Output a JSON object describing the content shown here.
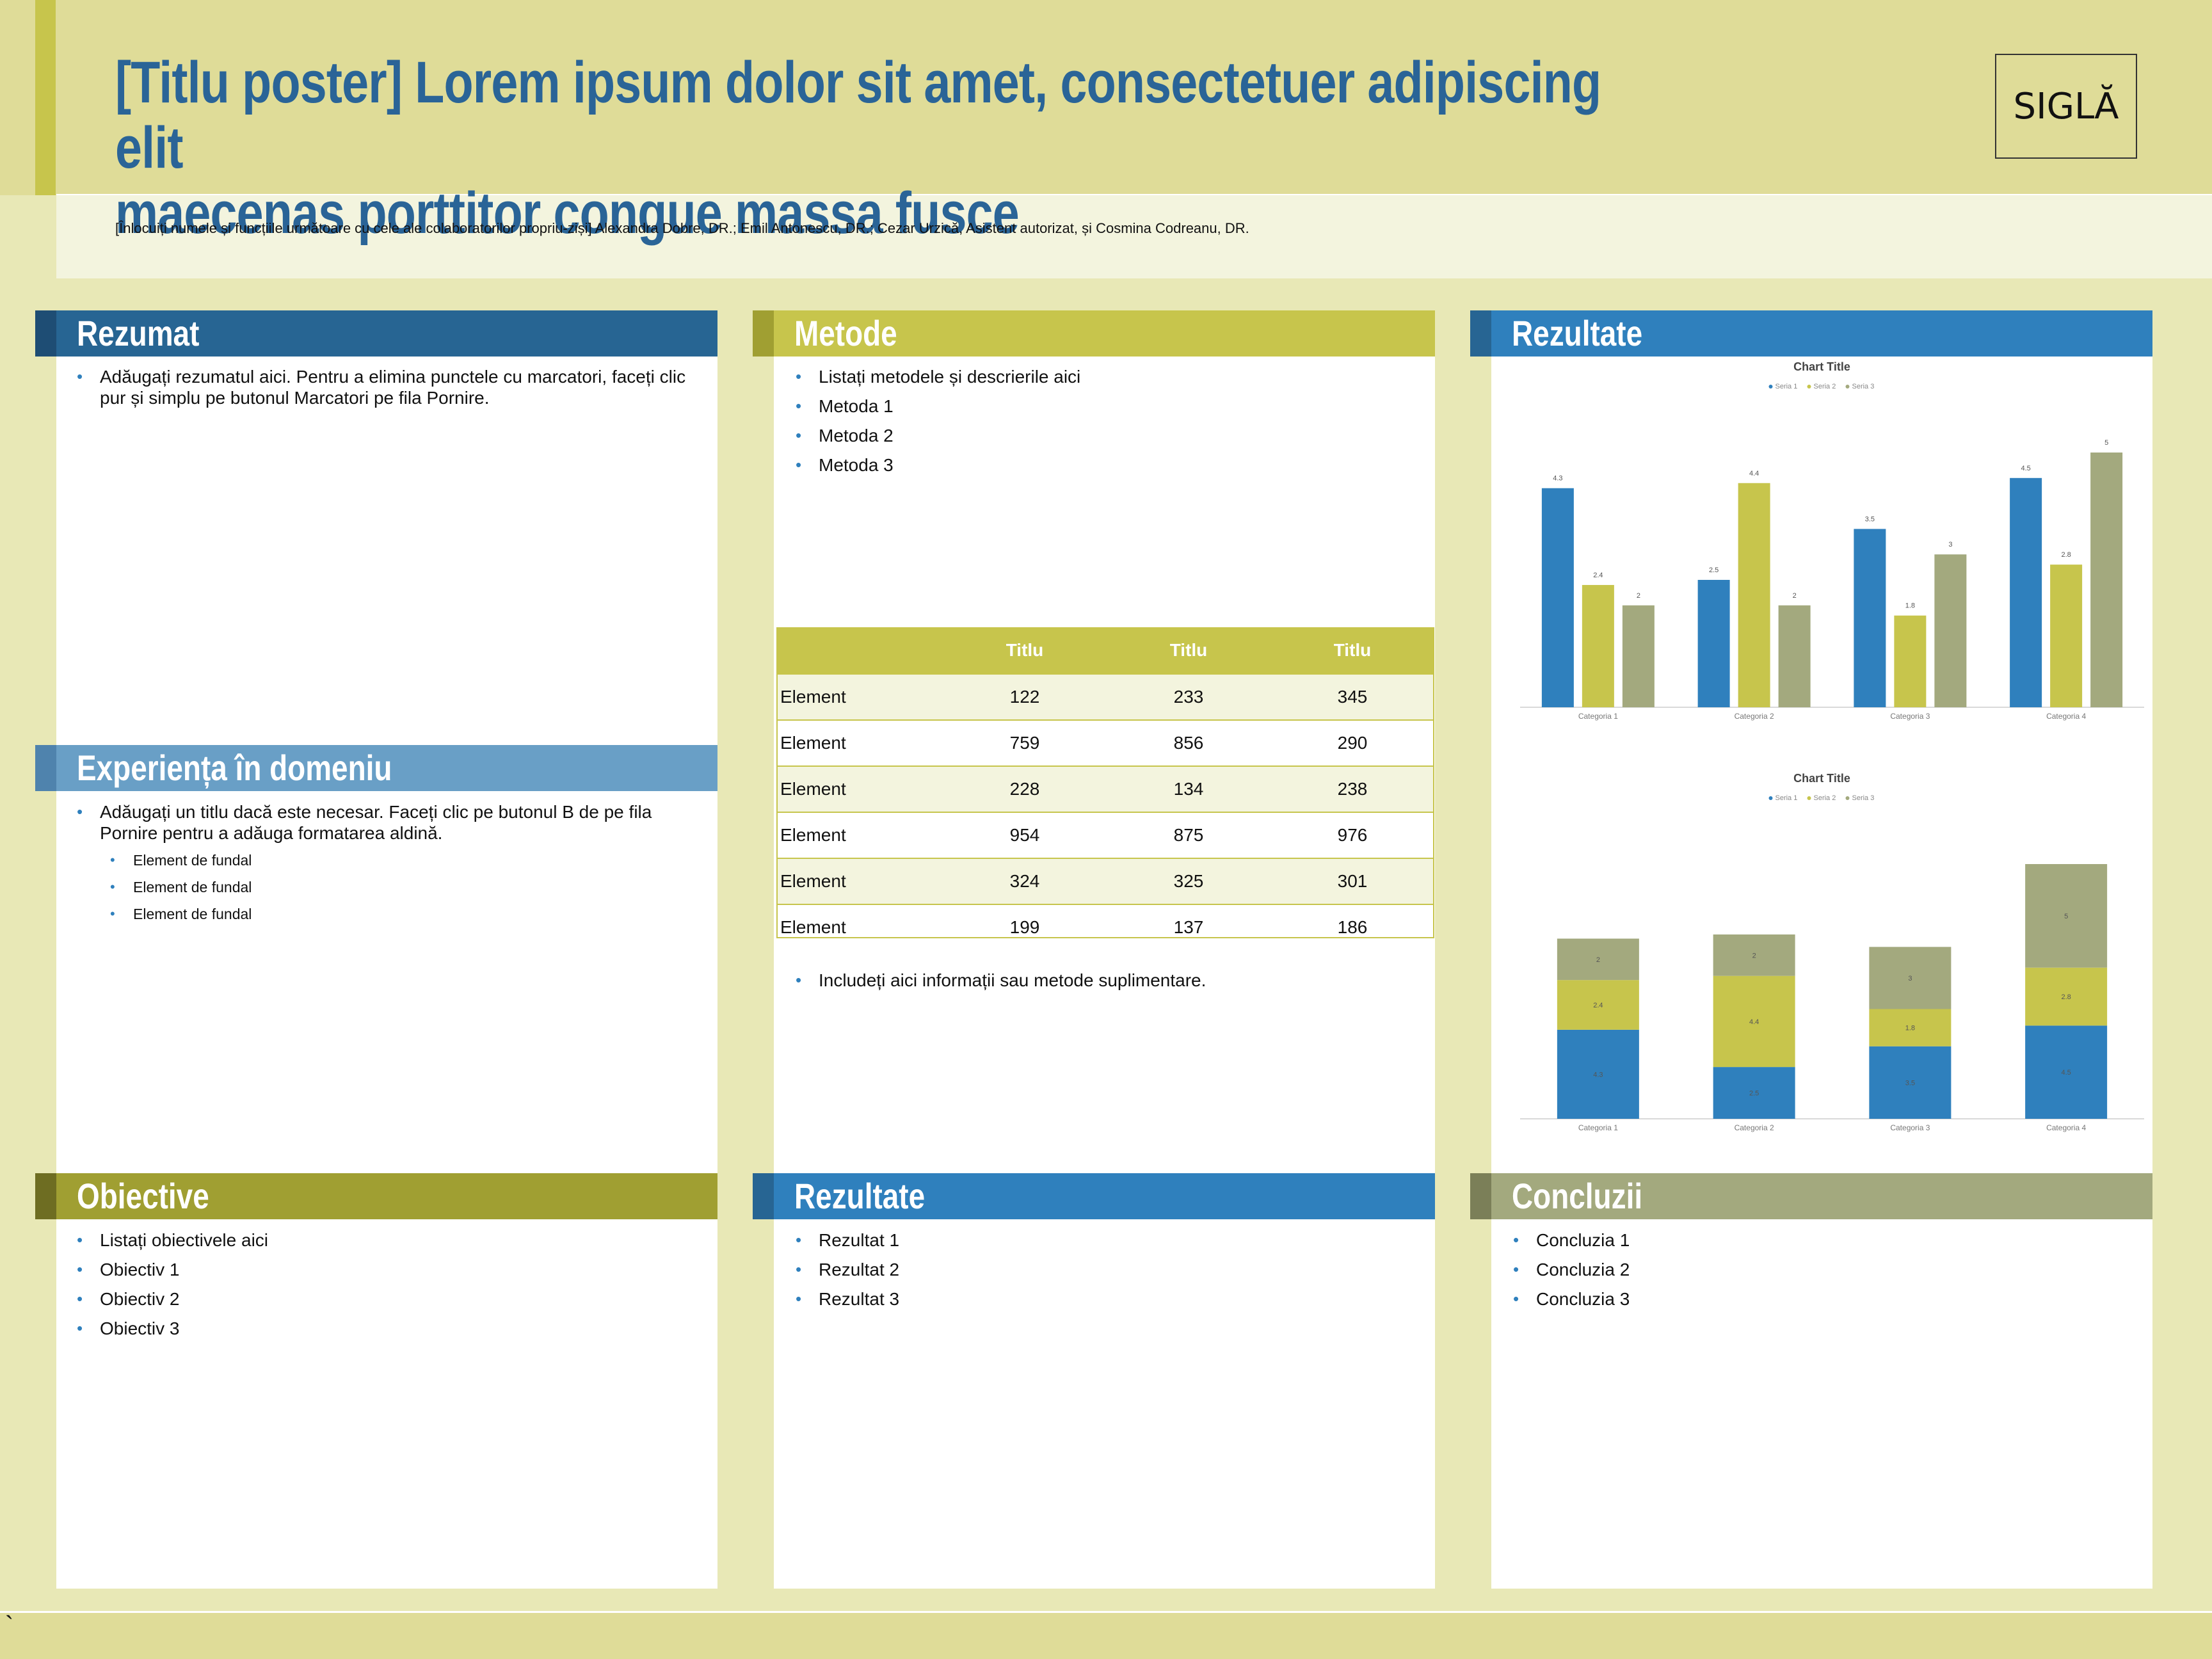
{
  "poster": {
    "title_line1": "[Titlu poster] Lorem ipsum dolor sit amet, consectetuer adipiscing elit",
    "title_line2": "maecenas porttitor congue massa fusce",
    "authors": "[Înlocuiți numele și funcțiile următoare cu cele ale colaboratorilor propriu-ziși] Alexandra Dobre, DR.; Emil Antonescu, DR.;  Cezar Urzică, Asistent autorizat, și Cosmina Codreanu, DR.",
    "logo": "SIGLĂ",
    "stray_mark": "`"
  },
  "sections": {
    "rezumat": {
      "title": "Rezumat",
      "items": [
        "Adăugați rezumatul aici. Pentru a elimina punctele cu marcatori, faceți clic pur și simplu pe butonul Marcatori pe fila Pornire."
      ]
    },
    "experienta": {
      "title": "Experiența în domeniu",
      "items": [
        "Adăugați un titlu dacă este necesar. Faceți clic pe butonul B de pe fila Pornire pentru a adăuga formatarea aldină."
      ],
      "subitems": [
        "Element de fundal",
        "Element de fundal",
        "Element de fundal"
      ]
    },
    "obiective": {
      "title": "Obiective",
      "items": [
        "Listați obiectivele aici",
        "Obiectiv 1",
        "Obiectiv 2",
        "Obiectiv 3"
      ]
    },
    "metode": {
      "title": "Metode",
      "items": [
        "Listați metodele și descrierile aici",
        "Metoda 1",
        "Metoda 2",
        "Metoda 3"
      ],
      "extra": [
        "Includeți aici informații sau metode suplimentare."
      ]
    },
    "rezultate_mid": {
      "title": "Rezultate",
      "items": [
        "Rezultat 1",
        "Rezultat 2",
        "Rezultat 3"
      ]
    },
    "rezultate_right": {
      "title": "Rezultate"
    },
    "concluzii": {
      "title": "Concluzii",
      "items": [
        "Concluzia 1",
        "Concluzia 2",
        "Concluzia 3"
      ]
    }
  },
  "table": {
    "headers": [
      "",
      "Titlu",
      "Titlu",
      "Titlu"
    ],
    "rows": [
      [
        "Element",
        "122",
        "233",
        "345"
      ],
      [
        "Element",
        "759",
        "856",
        "290"
      ],
      [
        "Element",
        "228",
        "134",
        "238"
      ],
      [
        "Element",
        "954",
        "875",
        "976"
      ],
      [
        "Element",
        "324",
        "325",
        "301"
      ],
      [
        "Element",
        "199",
        "137",
        "186"
      ]
    ]
  },
  "colors": {
    "blue": "#2f80bd",
    "olive": "#c7c54c",
    "sage": "#a3a97e",
    "dark_blue": "#276593",
    "light_blue": "#699fc6",
    "dark_olive": "#a09f32"
  },
  "chart_data": [
    {
      "type": "bar",
      "title": "Chart Title",
      "categories": [
        "Categoria 1",
        "Categoria 2",
        "Categoria 3",
        "Categoria 4"
      ],
      "series": [
        {
          "name": "Seria 1",
          "values": [
            4.3,
            2.5,
            3.5,
            4.5
          ],
          "color": "#2f80bd"
        },
        {
          "name": "Seria 2",
          "values": [
            2.4,
            4.4,
            1.8,
            2.8
          ],
          "color": "#c7c54c"
        },
        {
          "name": "Seria 3",
          "values": [
            2,
            2,
            3,
            5
          ],
          "color": "#a3a97e"
        }
      ],
      "ylim": [
        0,
        5
      ],
      "legend": "top",
      "grid": false,
      "data_labels": true
    },
    {
      "type": "bar",
      "stacked": true,
      "title": "Chart Title",
      "categories": [
        "Categoria 1",
        "Categoria 2",
        "Categoria 3",
        "Categoria 4"
      ],
      "series": [
        {
          "name": "Seria 1",
          "values": [
            4.3,
            2.5,
            3.5,
            4.5
          ],
          "color": "#2f80bd"
        },
        {
          "name": "Seria 2",
          "values": [
            2.4,
            4.4,
            1.8,
            2.8
          ],
          "color": "#c7c54c"
        },
        {
          "name": "Seria 3",
          "values": [
            2,
            2,
            3,
            5
          ],
          "color": "#a3a97e"
        }
      ],
      "ylim": [
        0,
        12.3
      ],
      "legend": "top",
      "grid": false,
      "data_labels": true
    }
  ]
}
